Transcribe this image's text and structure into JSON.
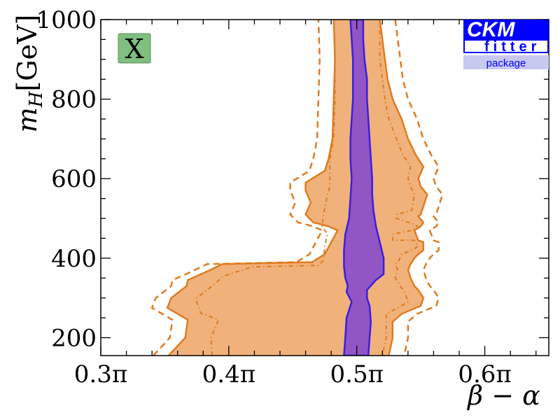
{
  "chart_data": {
    "type": "area",
    "title": "",
    "xlabel": "β − α",
    "ylabel": "m_H [GeV]",
    "ylabel_main": "m",
    "ylabel_sub": "H",
    "ylabel_unit": "[GeV]",
    "xlim": [
      0.3,
      0.65
    ],
    "ylim": [
      155,
      1000
    ],
    "x_unit": "π",
    "xticks": [
      {
        "value": 0.3,
        "label": "0.3π"
      },
      {
        "value": 0.4,
        "label": "0.4π"
      },
      {
        "value": 0.5,
        "label": "0.5π"
      },
      {
        "value": 0.6,
        "label": "0.6π"
      }
    ],
    "yticks": [
      {
        "value": 200,
        "label": "200"
      },
      {
        "value": 400,
        "label": "400"
      },
      {
        "value": 600,
        "label": "600"
      },
      {
        "value": 800,
        "label": "800"
      },
      {
        "value": 1000,
        "label": "1000"
      }
    ],
    "grid": false,
    "badge": "X",
    "logo": {
      "line1": "CKM",
      "line2": "fitter",
      "line3": "package"
    },
    "colors": {
      "outer_fill": "#f0b27a",
      "outer_line": "#e07b20",
      "inner_fill": "#9155c4",
      "inner_line": "#3a1ee0",
      "badge_fill": "#7fbf7f",
      "logo_blue": "#0000ff",
      "logo_light": "#c7c9f0"
    },
    "regions": [
      {
        "key": "outer",
        "left": [
          [
            0.353,
            155
          ],
          [
            0.366,
            200
          ],
          [
            0.368,
            245
          ],
          [
            0.352,
            275
          ],
          [
            0.355,
            300
          ],
          [
            0.367,
            330
          ],
          [
            0.368,
            345
          ],
          [
            0.382,
            365
          ],
          [
            0.395,
            385
          ],
          [
            0.465,
            390
          ],
          [
            0.475,
            410
          ],
          [
            0.48,
            440
          ],
          [
            0.485,
            470
          ],
          [
            0.478,
            480
          ],
          [
            0.466,
            490
          ],
          [
            0.46,
            510
          ],
          [
            0.464,
            540
          ],
          [
            0.46,
            570
          ],
          [
            0.46,
            590
          ],
          [
            0.475,
            620
          ],
          [
            0.478,
            650
          ],
          [
            0.481,
            700
          ],
          [
            0.482,
            800
          ],
          [
            0.483,
            900
          ],
          [
            0.482,
            1000
          ]
        ],
        "right": [
          [
            0.518,
            1000
          ],
          [
            0.52,
            950
          ],
          [
            0.522,
            900
          ],
          [
            0.524,
            850
          ],
          [
            0.528,
            800
          ],
          [
            0.535,
            750
          ],
          [
            0.54,
            700
          ],
          [
            0.546,
            660
          ],
          [
            0.552,
            630
          ],
          [
            0.548,
            600
          ],
          [
            0.55,
            580
          ],
          [
            0.555,
            560
          ],
          [
            0.55,
            510
          ],
          [
            0.548,
            505
          ],
          [
            0.552,
            490
          ],
          [
            0.55,
            480
          ],
          [
            0.545,
            470
          ],
          [
            0.548,
            445
          ],
          [
            0.552,
            440
          ],
          [
            0.552,
            420
          ],
          [
            0.548,
            410
          ],
          [
            0.545,
            400
          ],
          [
            0.542,
            385
          ],
          [
            0.54,
            370
          ],
          [
            0.542,
            350
          ],
          [
            0.545,
            330
          ],
          [
            0.548,
            320
          ],
          [
            0.552,
            300
          ],
          [
            0.55,
            280
          ],
          [
            0.535,
            260
          ],
          [
            0.528,
            240
          ],
          [
            0.528,
            200
          ],
          [
            0.525,
            155
          ]
        ]
      },
      {
        "key": "mid",
        "left": [
          [
            0.387,
            155
          ],
          [
            0.386,
            200
          ],
          [
            0.392,
            245
          ],
          [
            0.378,
            262
          ],
          [
            0.375,
            290
          ],
          [
            0.375,
            300
          ],
          [
            0.387,
            330
          ],
          [
            0.396,
            355
          ],
          [
            0.418,
            378
          ],
          [
            0.47,
            382
          ],
          [
            0.474,
            395
          ],
          [
            0.475,
            430
          ],
          [
            0.477,
            460
          ],
          [
            0.473,
            480
          ],
          [
            0.474,
            510
          ],
          [
            0.477,
            560
          ],
          [
            0.479,
            580
          ],
          [
            0.479,
            650
          ],
          [
            0.482,
            700
          ],
          [
            0.483,
            800
          ],
          [
            0.483,
            900
          ],
          [
            0.482,
            1000
          ]
        ],
        "right": [
          [
            0.518,
            1000
          ],
          [
            0.518,
            900
          ],
          [
            0.522,
            800
          ],
          [
            0.525,
            750
          ],
          [
            0.531,
            700
          ],
          [
            0.536,
            660
          ],
          [
            0.542,
            630
          ],
          [
            0.54,
            600
          ],
          [
            0.542,
            580
          ],
          [
            0.545,
            560
          ],
          [
            0.543,
            520
          ],
          [
            0.531,
            510
          ],
          [
            0.531,
            500
          ],
          [
            0.545,
            485
          ],
          [
            0.548,
            478
          ],
          [
            0.543,
            470
          ],
          [
            0.528,
            460
          ],
          [
            0.528,
            445
          ],
          [
            0.545,
            445
          ],
          [
            0.548,
            430
          ],
          [
            0.543,
            420
          ],
          [
            0.535,
            410
          ],
          [
            0.533,
            395
          ],
          [
            0.53,
            385
          ],
          [
            0.532,
            370
          ],
          [
            0.53,
            350
          ],
          [
            0.533,
            335
          ],
          [
            0.538,
            310
          ],
          [
            0.54,
            290
          ],
          [
            0.532,
            275
          ],
          [
            0.523,
            260
          ],
          [
            0.523,
            200
          ],
          [
            0.52,
            155
          ]
        ]
      },
      {
        "key": "inner",
        "left": [
          [
            0.49,
            155
          ],
          [
            0.491,
            200
          ],
          [
            0.492,
            250
          ],
          [
            0.496,
            290
          ],
          [
            0.492,
            315
          ],
          [
            0.493,
            330
          ],
          [
            0.491,
            350
          ],
          [
            0.49,
            380
          ],
          [
            0.49,
            420
          ],
          [
            0.491,
            460
          ],
          [
            0.494,
            500
          ],
          [
            0.495,
            550
          ],
          [
            0.496,
            600
          ],
          [
            0.495,
            650
          ],
          [
            0.495,
            700
          ],
          [
            0.497,
            800
          ],
          [
            0.497,
            900
          ],
          [
            0.495,
            1000
          ]
        ],
        "right": [
          [
            0.505,
            1000
          ],
          [
            0.505,
            950
          ],
          [
            0.506,
            900
          ],
          [
            0.508,
            850
          ],
          [
            0.508,
            800
          ],
          [
            0.509,
            750
          ],
          [
            0.51,
            700
          ],
          [
            0.511,
            650
          ],
          [
            0.512,
            600
          ],
          [
            0.512,
            560
          ],
          [
            0.513,
            520
          ],
          [
            0.515,
            480
          ],
          [
            0.518,
            440
          ],
          [
            0.521,
            400
          ],
          [
            0.521,
            360
          ],
          [
            0.515,
            345
          ],
          [
            0.508,
            320
          ],
          [
            0.508,
            300
          ],
          [
            0.51,
            280
          ],
          [
            0.511,
            240
          ],
          [
            0.51,
            200
          ],
          [
            0.509,
            155
          ]
        ]
      }
    ]
  }
}
